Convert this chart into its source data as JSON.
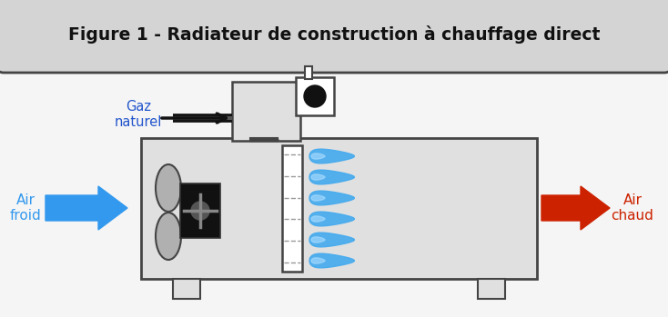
{
  "title": "Figure 1 - Radiateur de construction à chauffage direct",
  "title_bg": "#d4d4d4",
  "bg_color": "#f5f5f5",
  "outer_bg": "#ffffff",
  "border_color": "#444444",
  "body_color": "#e0e0e0",
  "label_air_froid": "Air\nfroid",
  "label_air_chaud": "Air\nchaud",
  "label_gaz": "Gaz\nnaturel",
  "arrow_blue": "#3399ee",
  "arrow_red": "#cc2200",
  "flame_color": "#44aaee",
  "text_color": "#111111",
  "gaz_text_color": "#2255cc"
}
